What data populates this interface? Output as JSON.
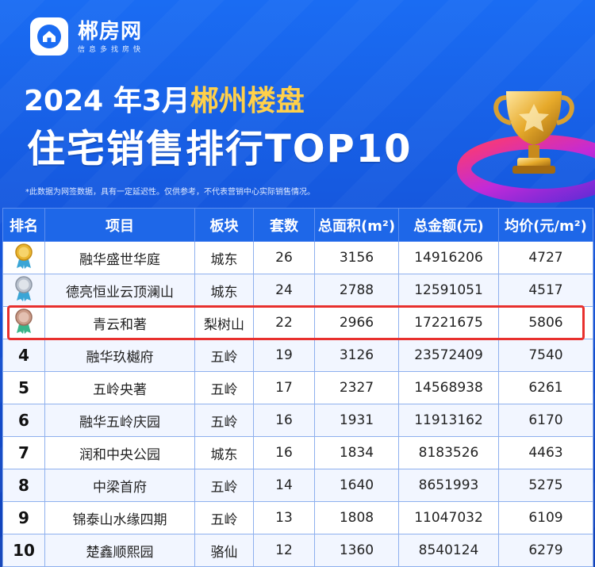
{
  "brand": {
    "name": "郴房网",
    "slogan": "信息多找房快"
  },
  "title": {
    "year_month": "2024 年3月",
    "city": "郴州楼盘",
    "subtitle": "住宅销售排行TOP10"
  },
  "note": "*此数据为网签数据，具有一定延迟性。仅供参考，不代表营销中心实际销售情况。",
  "table": {
    "headers": [
      "排名",
      "项目",
      "板块",
      "套数",
      "总面积(m²)",
      "总金额(元)",
      "均价(元/m²)"
    ],
    "rows": [
      {
        "rank": "1",
        "project": "融华盛世华庭",
        "area": "城东",
        "units": "26",
        "total_area": "3156",
        "total_amount": "14916206",
        "avg_price": "4727",
        "medal": "gold"
      },
      {
        "rank": "2",
        "project": "德亮恒业云顶澜山",
        "area": "城东",
        "units": "24",
        "total_area": "2788",
        "total_amount": "12591051",
        "avg_price": "4517",
        "medal": "silver"
      },
      {
        "rank": "3",
        "project": "青云和著",
        "area": "梨树山",
        "units": "22",
        "total_area": "2966",
        "total_amount": "17221675",
        "avg_price": "5806",
        "medal": "bronze"
      },
      {
        "rank": "4",
        "project": "融华玖樾府",
        "area": "五岭",
        "units": "19",
        "total_area": "3126",
        "total_amount": "23572409",
        "avg_price": "7540"
      },
      {
        "rank": "5",
        "project": "五岭央著",
        "area": "五岭",
        "units": "17",
        "total_area": "2327",
        "total_amount": "14568938",
        "avg_price": "6261"
      },
      {
        "rank": "6",
        "project": "融华五岭庆园",
        "area": "五岭",
        "units": "16",
        "total_area": "1931",
        "total_amount": "11913162",
        "avg_price": "6170"
      },
      {
        "rank": "7",
        "project": "润和中央公园",
        "area": "城东",
        "units": "16",
        "total_area": "1834",
        "total_amount": "8183526",
        "avg_price": "4463"
      },
      {
        "rank": "8",
        "project": "中梁首府",
        "area": "五岭",
        "units": "14",
        "total_area": "1640",
        "total_amount": "8651993",
        "avg_price": "5275"
      },
      {
        "rank": "9",
        "project": "锦泰山水缘四期",
        "area": "五岭",
        "units": "13",
        "total_area": "1808",
        "total_amount": "11047032",
        "avg_price": "6109"
      },
      {
        "rank": "10",
        "project": "楚鑫顺熙园",
        "area": "骆仙",
        "units": "12",
        "total_area": "1360",
        "total_amount": "8540124",
        "avg_price": "6279"
      }
    ]
  },
  "colors": {
    "header_bg": "#1e67e8",
    "accent_title": "#ffd04a",
    "highlight_border": "#e8302e",
    "medal_gold": "#e9b530",
    "medal_silver": "#b8c0cc",
    "medal_bronze": "#c99a86"
  }
}
